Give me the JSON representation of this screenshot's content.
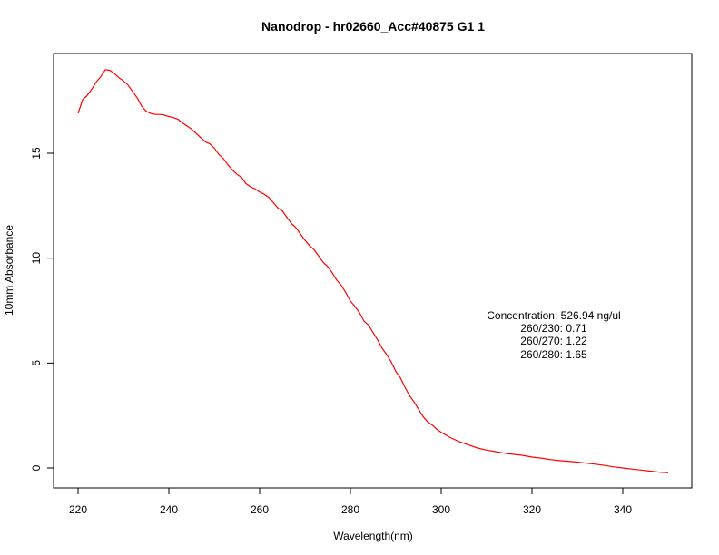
{
  "chart_data": {
    "type": "line",
    "title": "Nanodrop - hr02660_Acc#40875 G1 1",
    "xlabel": "Wavelength(nm)",
    "ylabel": "10mm Absorbance",
    "xlim": [
      220,
      350
    ],
    "ylim": [
      0,
      19
    ],
    "x_ticks": [
      "220",
      "240",
      "260",
      "280",
      "300",
      "320",
      "340"
    ],
    "y_ticks": [
      "0",
      "5",
      "10",
      "15"
    ],
    "grid": false,
    "series": [
      {
        "color": "#ff0000",
        "x": [
          220,
          221,
          222,
          223,
          224,
          225,
          226,
          227,
          228,
          229,
          230,
          231,
          232,
          233,
          234,
          235,
          236,
          237,
          238,
          239,
          240,
          241,
          242,
          243,
          244,
          245,
          246,
          247,
          248,
          249,
          250,
          251,
          252,
          253,
          254,
          255,
          256,
          257,
          258,
          259,
          260,
          261,
          262,
          263,
          264,
          265,
          266,
          267,
          268,
          269,
          270,
          271,
          272,
          273,
          274,
          275,
          276,
          277,
          278,
          279,
          280,
          281,
          282,
          283,
          284,
          285,
          286,
          287,
          288,
          289,
          290,
          291,
          292,
          293,
          294,
          295,
          296,
          297,
          298,
          299,
          300,
          302,
          304,
          306,
          308,
          310,
          312,
          314,
          316,
          318,
          320,
          322,
          324,
          326,
          328,
          330,
          332,
          334,
          336,
          338,
          340,
          342,
          344,
          346,
          348,
          350
        ],
        "values": [
          16.9,
          17.55,
          17.75,
          18.05,
          18.4,
          18.65,
          18.98,
          18.95,
          18.8,
          18.6,
          18.45,
          18.25,
          17.95,
          17.65,
          17.25,
          17.0,
          16.9,
          16.85,
          16.85,
          16.82,
          16.75,
          16.7,
          16.62,
          16.45,
          16.3,
          16.15,
          15.95,
          15.75,
          15.55,
          15.45,
          15.25,
          14.95,
          14.75,
          14.45,
          14.2,
          14.0,
          13.85,
          13.55,
          13.4,
          13.3,
          13.15,
          13.05,
          12.9,
          12.65,
          12.4,
          12.25,
          11.95,
          11.65,
          11.45,
          11.15,
          10.85,
          10.6,
          10.4,
          10.1,
          9.8,
          9.6,
          9.3,
          8.95,
          8.7,
          8.35,
          7.95,
          7.7,
          7.4,
          7.0,
          6.8,
          6.45,
          6.1,
          5.7,
          5.4,
          5.05,
          4.6,
          4.3,
          3.85,
          3.45,
          3.15,
          2.8,
          2.45,
          2.2,
          2.05,
          1.85,
          1.7,
          1.45,
          1.25,
          1.1,
          0.95,
          0.85,
          0.78,
          0.7,
          0.65,
          0.6,
          0.52,
          0.47,
          0.4,
          0.35,
          0.32,
          0.28,
          0.23,
          0.18,
          0.12,
          0.05,
          0.0,
          -0.05,
          -0.1,
          -0.15,
          -0.2,
          -0.23
        ]
      }
    ],
    "annotations": {
      "concentration": "Concentration: 526.94 ng/ul",
      "r260_230": "260/230: 0.71",
      "r260_270": "260/270: 1.22",
      "r260_280": "260/280: 1.65"
    }
  }
}
